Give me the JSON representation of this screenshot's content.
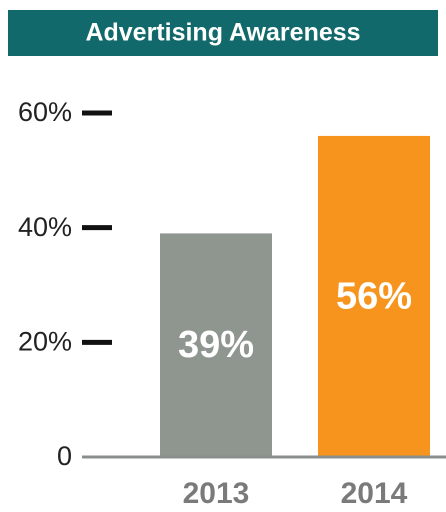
{
  "chart_data": {
    "type": "bar",
    "title": "Advertising Awareness",
    "categories": [
      "2013",
      "2014"
    ],
    "values": [
      39,
      56
    ],
    "value_labels": [
      "39%",
      "56%"
    ],
    "colors": [
      "#8f9690",
      "#f7941d"
    ],
    "ylim": [
      0,
      60
    ],
    "yticks": [
      0,
      {
        "value": 20,
        "label": "20%"
      },
      {
        "value": 40,
        "label": "40%"
      },
      {
        "value": 60,
        "label": "60%"
      }
    ]
  }
}
